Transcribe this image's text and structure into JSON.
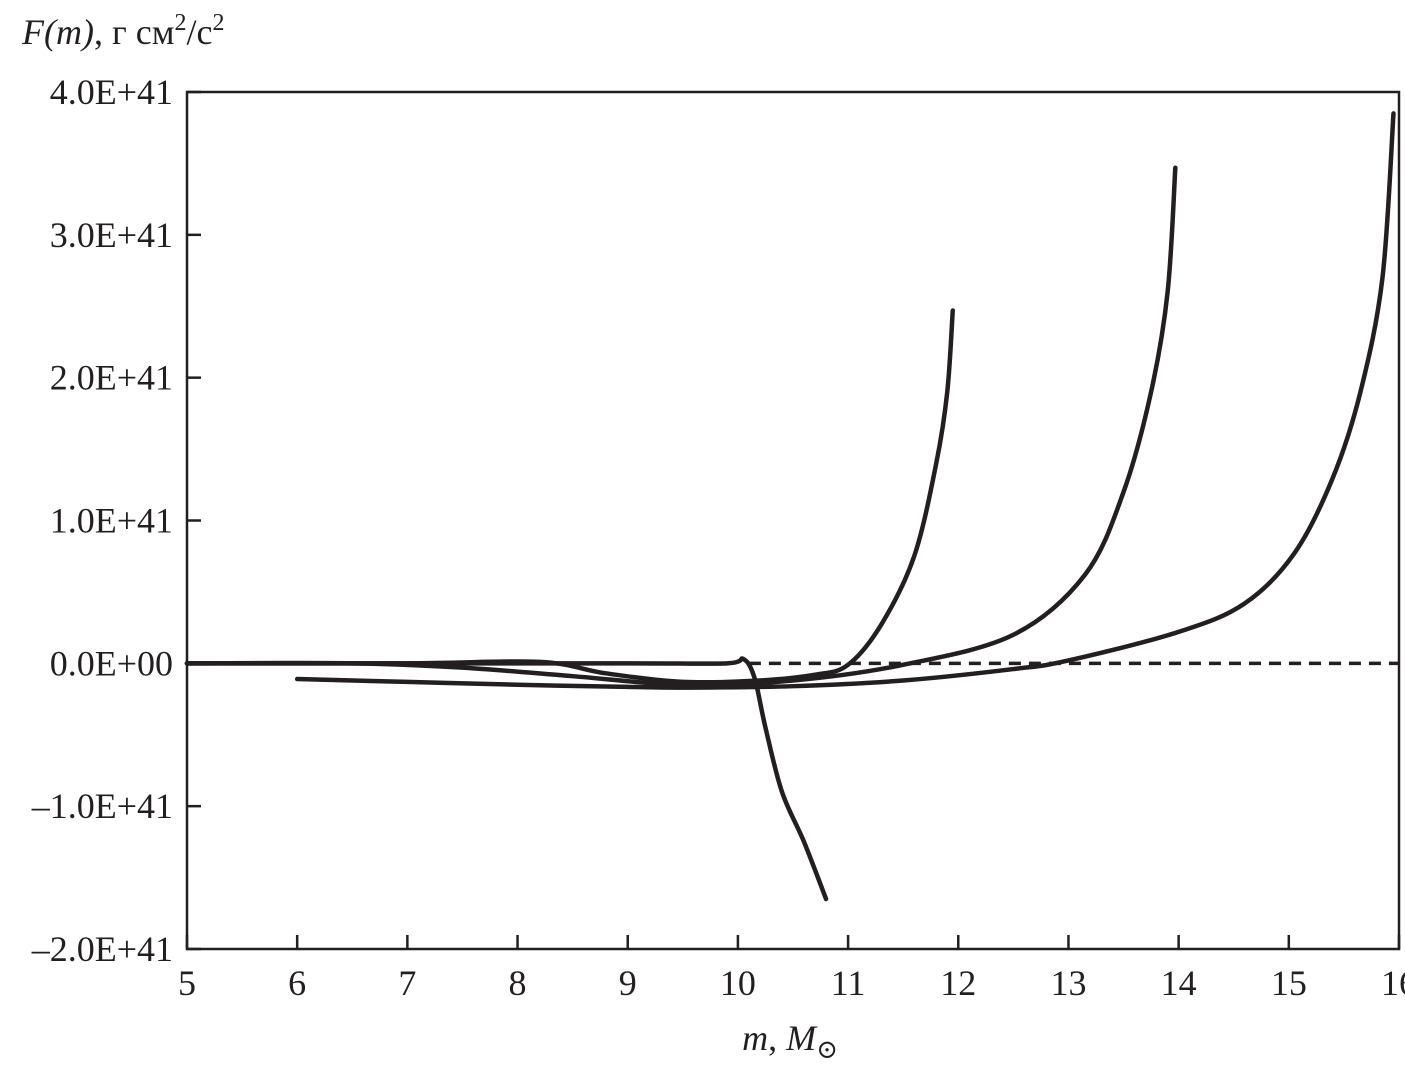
{
  "chart_data": {
    "type": "line",
    "title": "",
    "ylabel": {
      "main": "F(m)",
      "units": ", г см",
      "sup1": "2",
      "slash": "/с",
      "sup2": "2"
    },
    "xlabel": {
      "var": "m",
      "sep": ", ",
      "unit": "M",
      "sub": "⊙"
    },
    "xlim": [
      5,
      16
    ],
    "ylim": [
      -2e+41,
      4e+41
    ],
    "xticks": [
      5,
      6,
      7,
      8,
      9,
      10,
      11,
      12,
      13,
      14,
      15,
      16
    ],
    "xtick_labels": [
      "5",
      "6",
      "7",
      "8",
      "9",
      "10",
      "11",
      "12",
      "13",
      "14",
      "15",
      "16"
    ],
    "yticks": [
      4e+41,
      3e+41,
      2e+41,
      1e+41,
      0,
      -1e+41,
      -2e+41
    ],
    "ytick_labels": [
      "4.0E+41",
      "3.0E+41",
      "2.0E+41",
      "1.0E+41",
      "0.0E+00",
      "–1.0E+41",
      "–2.0E+41"
    ],
    "grid": false,
    "color": "#231f20",
    "series": [
      {
        "name": "curve-1",
        "style": "solid",
        "x": [
          5,
          7,
          9,
          9.9,
          10.05,
          10.15,
          10.25,
          10.4,
          10.6,
          10.8
        ],
        "y": [
          0,
          0,
          0,
          0,
          3e+39,
          -1e+40,
          -4.5e+40,
          -9e+40,
          -1.25e+41,
          -1.65e+41
        ]
      },
      {
        "name": "curve-2",
        "style": "solid",
        "x": [
          5,
          7,
          8.2,
          8.8,
          9.5,
          10.2,
          10.7,
          11.0,
          11.3,
          11.6,
          11.8,
          11.9,
          11.95
        ],
        "y": [
          0,
          0,
          1e+39,
          -7e+39,
          -1.3e+40,
          -1.2e+40,
          -8e+39,
          -1e+39,
          2.7e+40,
          7.5e+40,
          1.4e+41,
          1.9e+41,
          2.47e+41
        ]
      },
      {
        "name": "curve-3",
        "style": "solid",
        "x": [
          5,
          6.5,
          7.5,
          8.5,
          9.5,
          10.5,
          11.5,
          12.5,
          13.15,
          13.5,
          13.75,
          13.9,
          13.97
        ],
        "y": [
          0,
          0,
          -3e+39,
          -9e+39,
          -1.5e+40,
          -1.2e+40,
          -1e+39,
          2e+40,
          6.2e+40,
          1.2e+41,
          1.9e+41,
          2.6e+41,
          3.47e+41
        ]
      },
      {
        "name": "curve-4",
        "style": "solid",
        "x": [
          6,
          7,
          8,
          9,
          9.5,
          10.5,
          11.5,
          12.5,
          13,
          14,
          14.6,
          15.05,
          15.4,
          15.65,
          15.85,
          15.95
        ],
        "y": [
          -1.1e+40,
          -1.3e+40,
          -1.5e+40,
          -1.65e+40,
          -1.7e+40,
          -1.6e+40,
          -1.2e+40,
          -4e+39,
          2e+39,
          2.2e+40,
          4.2e+40,
          7.7e+40,
          1.3e+41,
          1.9e+41,
          2.7e+41,
          3.85e+41
        ]
      },
      {
        "name": "zero-reference",
        "style": "dashed",
        "x": [
          10.1,
          16
        ],
        "y": [
          0,
          0
        ]
      }
    ]
  }
}
